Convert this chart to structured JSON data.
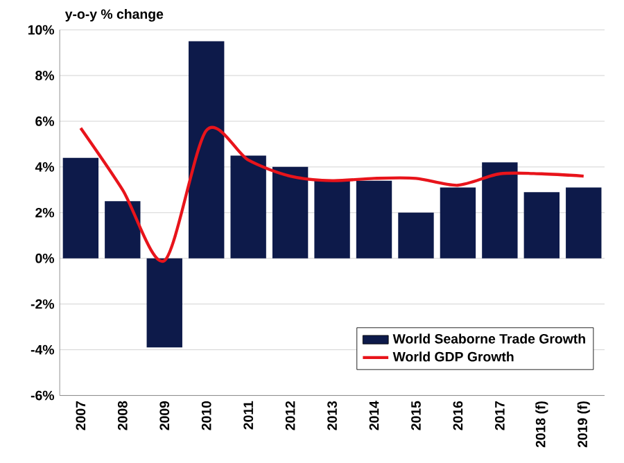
{
  "chart_data": {
    "type": "bar",
    "ylabel": "y-o-y % change",
    "categories": [
      "2007",
      "2008",
      "2009",
      "2010",
      "2011",
      "2012",
      "2013",
      "2014",
      "2015",
      "2016",
      "2017",
      "2018 (f)",
      "2019 (f)"
    ],
    "series": [
      {
        "name": "World Seaborne Trade Growth",
        "color": "#0d1a4a",
        "values": [
          4.4,
          2.5,
          -3.9,
          9.5,
          4.5,
          4.0,
          3.4,
          3.4,
          2.0,
          3.1,
          4.2,
          2.9,
          3.1
        ]
      },
      {
        "name": "World GDP Growth",
        "type": "line",
        "color": "#e8141b",
        "line_style": "solid",
        "values": [
          5.7,
          3.0,
          -0.1,
          5.6,
          4.3,
          3.6,
          3.4,
          3.5,
          3.5,
          3.2,
          3.7,
          3.7,
          3.6
        ]
      }
    ],
    "ylim": [
      -6,
      10
    ],
    "yticks": [
      {
        "value": -6,
        "label": "-6%"
      },
      {
        "value": -4,
        "label": "-4%"
      },
      {
        "value": -2,
        "label": "-2%"
      },
      {
        "value": 0,
        "label": "0%"
      },
      {
        "value": 2,
        "label": "2%"
      },
      {
        "value": 4,
        "label": "4%"
      },
      {
        "value": 6,
        "label": "6%"
      },
      {
        "value": 8,
        "label": "8%"
      },
      {
        "value": 10,
        "label": "10%"
      }
    ],
    "grid": "y",
    "legend": "bottom right",
    "marker": "none"
  }
}
